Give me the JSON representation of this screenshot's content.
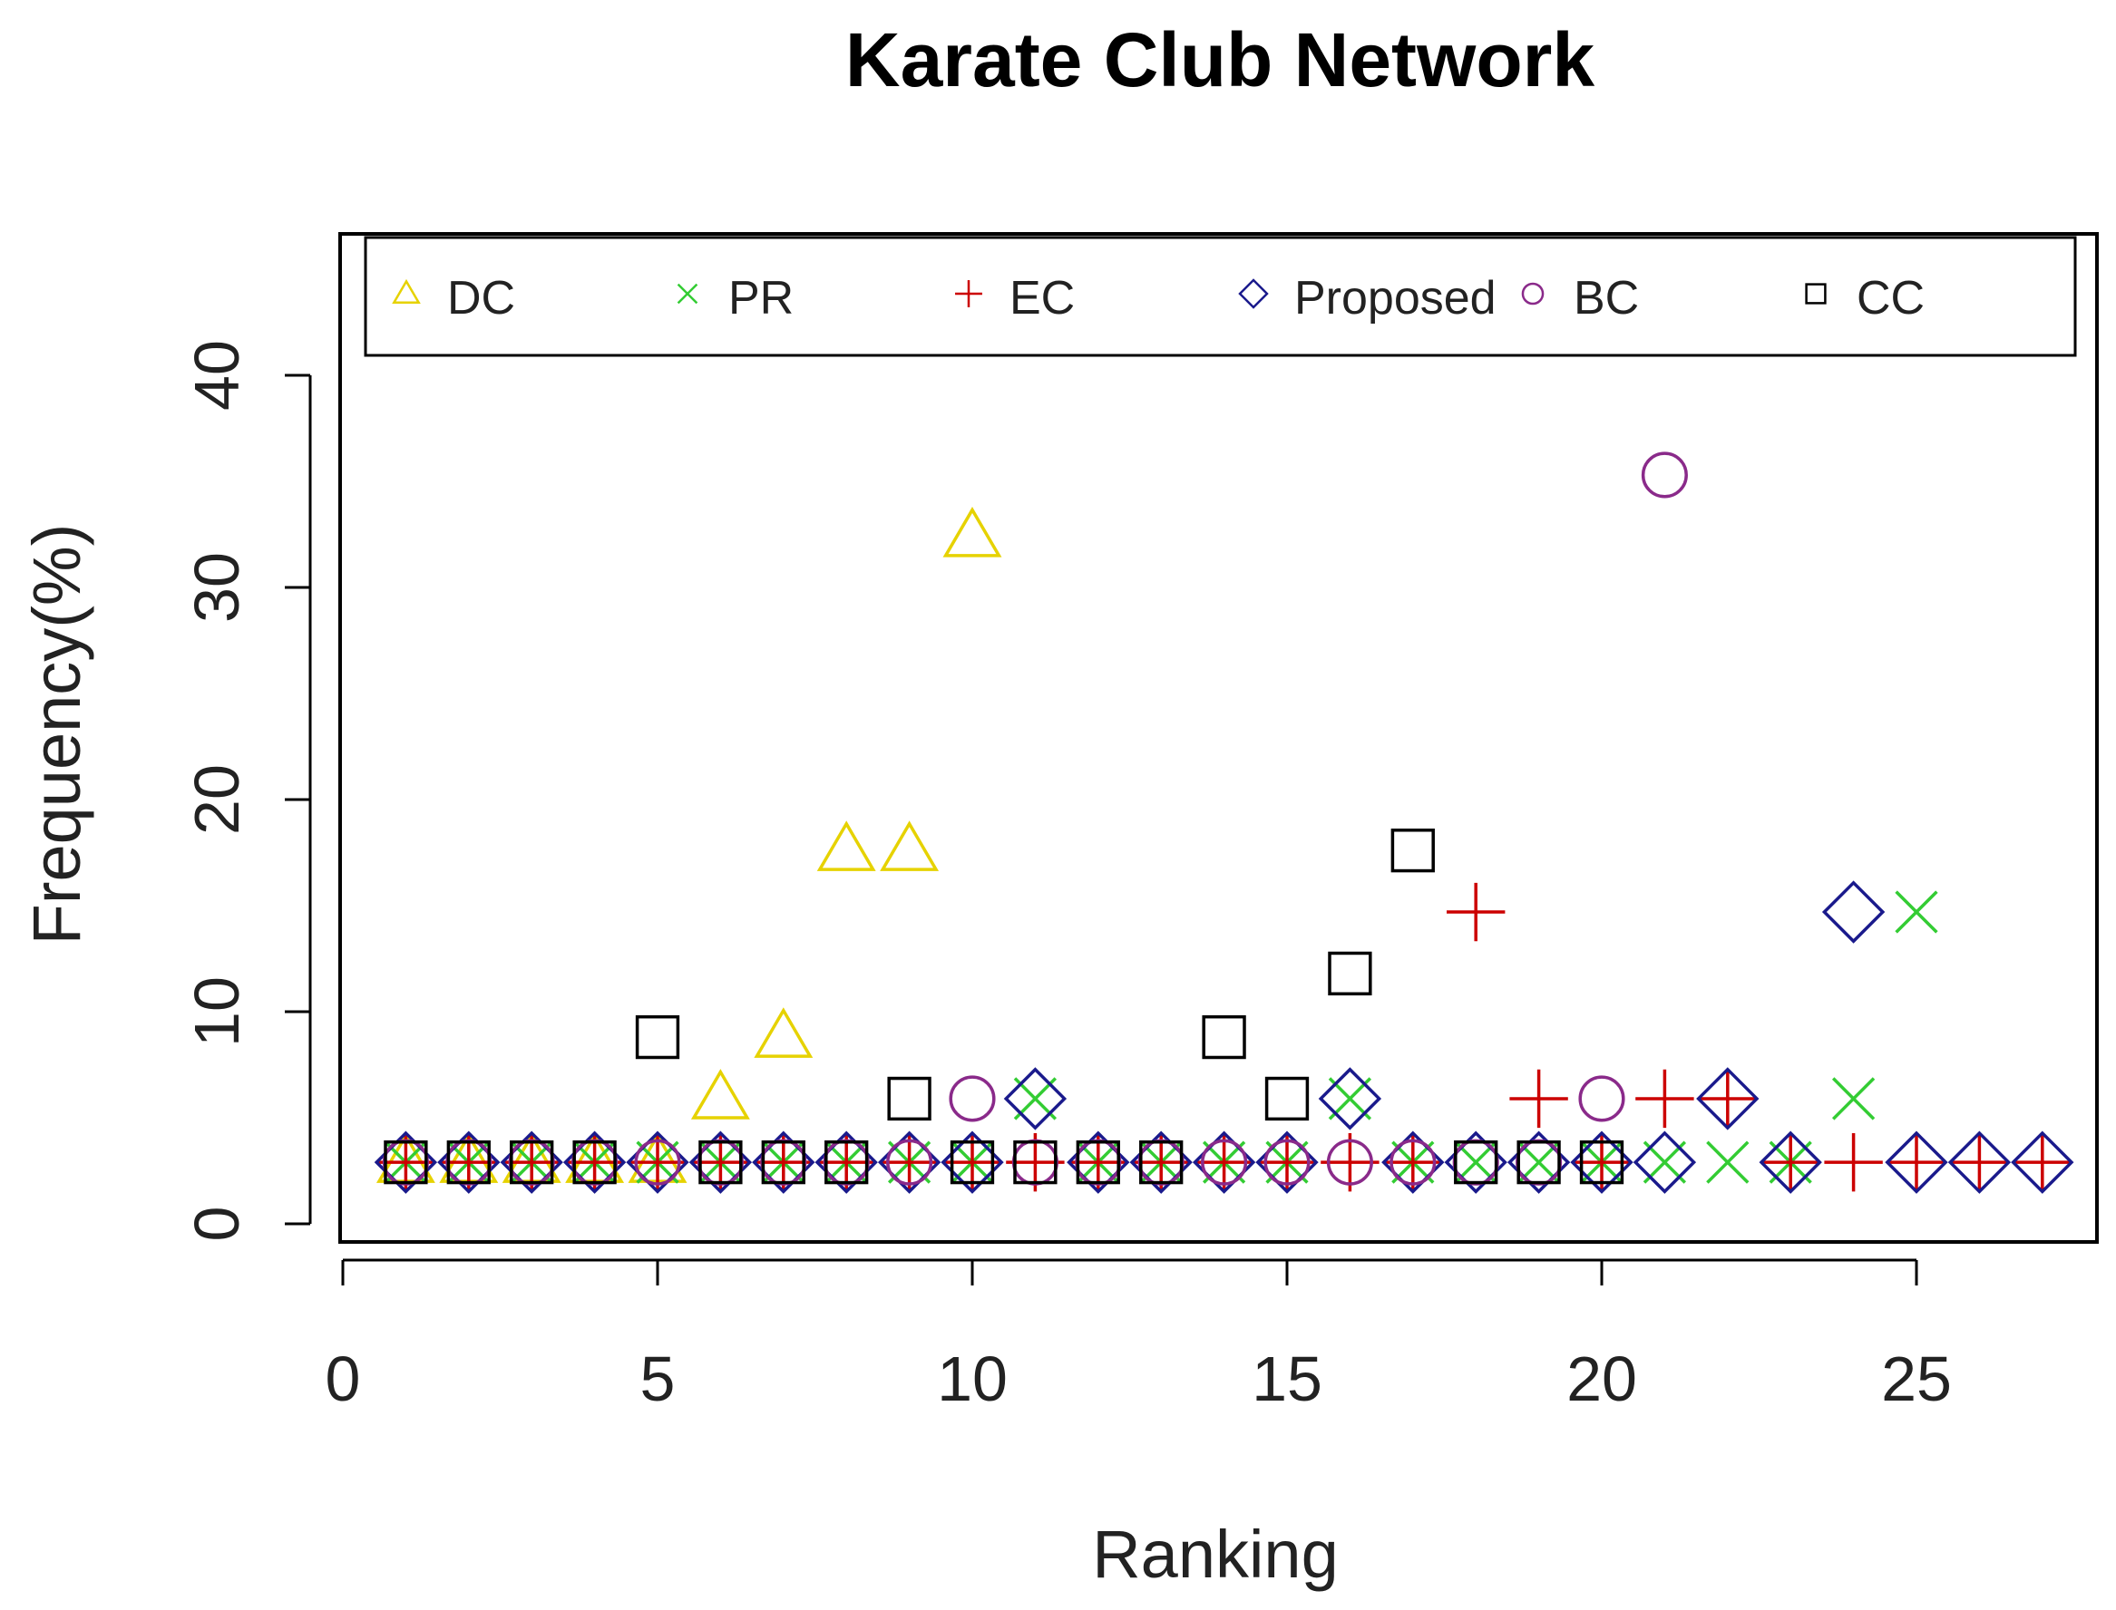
{
  "chart_data": {
    "type": "scatter",
    "title": "Karate Club Network",
    "xlabel": "Ranking",
    "ylabel": "Frequency(%)",
    "xlim": [
      0,
      28
    ],
    "ylim": [
      -1,
      46
    ],
    "x_ticks": [
      "0",
      "5",
      "10",
      "15",
      "20",
      "25"
    ],
    "y_ticks": [
      "0",
      "10",
      "20",
      "30",
      "40"
    ],
    "legend_position": "top",
    "series": [
      {
        "name": "DC",
        "marker": "triangle",
        "color": "#e6d200",
        "x": [
          1,
          2,
          3,
          4,
          5,
          6,
          7,
          8,
          9,
          10
        ],
        "y": [
          2.9,
          2.9,
          2.9,
          2.9,
          2.9,
          5.9,
          8.8,
          17.6,
          17.6,
          32.4
        ]
      },
      {
        "name": "PR",
        "marker": "x",
        "color": "#33cc33",
        "x": [
          1,
          2,
          3,
          4,
          5,
          6,
          7,
          8,
          9,
          10,
          11,
          12,
          13,
          14,
          15,
          16,
          17,
          18,
          19,
          20,
          21,
          22,
          23,
          24,
          25
        ],
        "y": [
          2.9,
          2.9,
          2.9,
          2.9,
          2.9,
          2.9,
          2.9,
          2.9,
          2.9,
          2.9,
          5.9,
          2.9,
          2.9,
          2.9,
          2.9,
          5.9,
          2.9,
          2.9,
          2.9,
          2.9,
          2.9,
          2.9,
          2.9,
          5.9,
          14.7
        ]
      },
      {
        "name": "EC",
        "marker": "plus",
        "color": "#cc0000",
        "x": [
          1,
          2,
          3,
          4,
          5,
          6,
          7,
          8,
          9,
          10,
          11,
          12,
          13,
          14,
          15,
          16,
          17,
          18,
          19,
          20,
          21,
          22,
          23,
          24,
          25,
          26,
          27
        ],
        "y": [
          2.9,
          2.9,
          2.9,
          2.9,
          2.9,
          2.9,
          2.9,
          2.9,
          2.9,
          2.9,
          2.9,
          2.9,
          2.9,
          2.9,
          2.9,
          2.9,
          2.9,
          14.7,
          5.9,
          2.9,
          5.9,
          5.9,
          2.9,
          2.9,
          2.9,
          2.9,
          2.9
        ]
      },
      {
        "name": "Proposed",
        "marker": "diamond",
        "color": "#1a1a8c",
        "x": [
          1,
          2,
          3,
          4,
          5,
          6,
          7,
          8,
          9,
          10,
          11,
          12,
          13,
          14,
          15,
          16,
          17,
          18,
          19,
          20,
          21,
          22,
          23,
          24,
          25,
          26,
          27
        ],
        "y": [
          2.9,
          2.9,
          2.9,
          2.9,
          2.9,
          2.9,
          2.9,
          2.9,
          2.9,
          2.9,
          5.9,
          2.9,
          2.9,
          2.9,
          2.9,
          5.9,
          2.9,
          2.9,
          2.9,
          2.9,
          2.9,
          5.9,
          2.9,
          14.7,
          2.9,
          2.9,
          2.9
        ]
      },
      {
        "name": "BC",
        "marker": "circle",
        "color": "#8a2a8a",
        "x": [
          1,
          2,
          3,
          4,
          5,
          6,
          7,
          8,
          9,
          10,
          11,
          12,
          13,
          14,
          15,
          16,
          17,
          18,
          19,
          20,
          21
        ],
        "y": [
          2.9,
          2.9,
          2.9,
          2.9,
          2.9,
          2.9,
          2.9,
          2.9,
          2.9,
          5.9,
          2.9,
          2.9,
          2.9,
          2.9,
          2.9,
          2.9,
          2.9,
          2.9,
          2.9,
          5.9,
          35.3
        ]
      },
      {
        "name": "CC",
        "marker": "square",
        "color": "#000000",
        "x": [
          1,
          2,
          3,
          4,
          5,
          6,
          7,
          8,
          9,
          10,
          11,
          12,
          13,
          14,
          15,
          16,
          17,
          18,
          19,
          20
        ],
        "y": [
          2.9,
          2.9,
          2.9,
          2.9,
          8.8,
          2.9,
          2.9,
          2.9,
          5.9,
          2.9,
          2.9,
          2.9,
          2.9,
          8.8,
          5.9,
          11.8,
          17.6,
          2.9,
          2.9,
          2.9
        ]
      }
    ]
  }
}
